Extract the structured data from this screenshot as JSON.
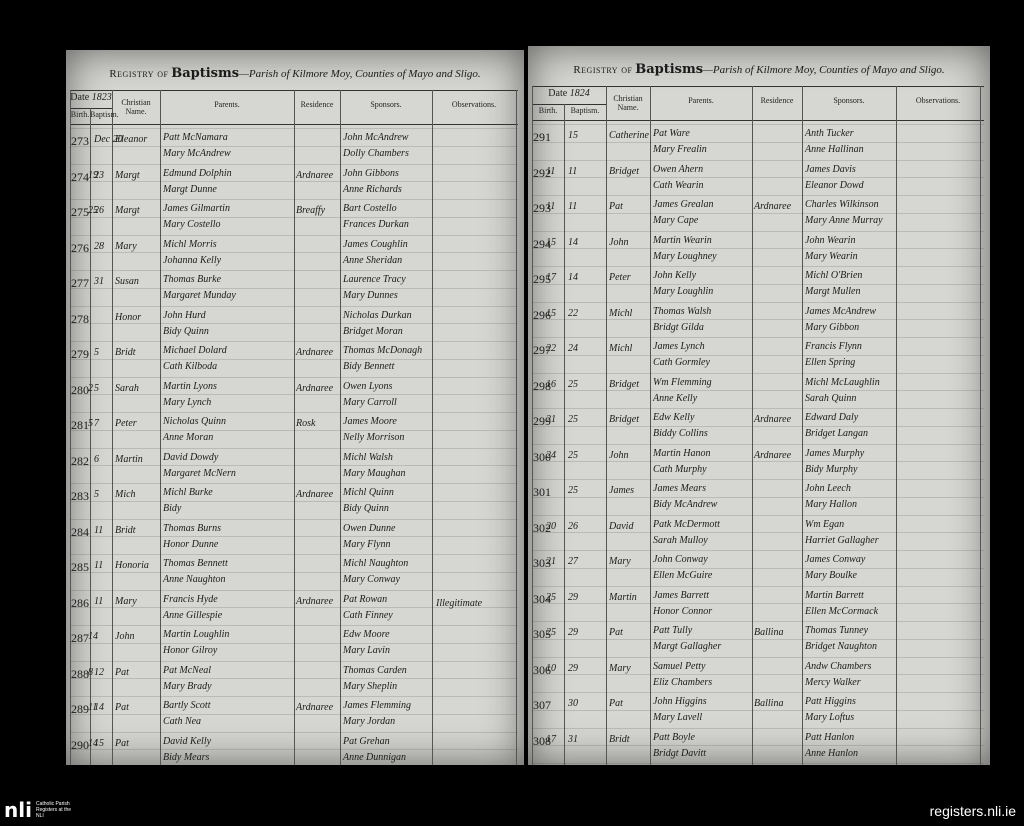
{
  "pages": [
    {
      "header": {
        "registry": "Registry of",
        "title": "Baptisms",
        "parish": "—Parish of Kilmore Moy, Counties of Mayo and Sligo."
      },
      "columns": {
        "date": "Date",
        "year": "1823",
        "birth": "Birth.",
        "baptism": "Baptism.",
        "christian_name": "Christian Name.",
        "parents": "Parents.",
        "residence": "Residence",
        "sponsors": "Sponsors.",
        "observations": "Observations."
      },
      "entries": [
        {
          "number": "273",
          "baptism": "Dec 20",
          "name": "Eleanor",
          "parents": [
            "Patt McNamara",
            "Mary McAndrew"
          ],
          "sponsors": [
            "John McAndrew",
            "Dolly Chambers"
          ]
        },
        {
          "number": "274",
          "birth": "19",
          "baptism": "23",
          "name": "Margt",
          "parents": [
            "Edmund Dolphin",
            "Margt Dunne"
          ],
          "residence": "Ardnaree",
          "sponsors": [
            "John Gibbons",
            "Anne Richards"
          ]
        },
        {
          "number": "275",
          "birth": "25",
          "baptism": "26",
          "name": "Margt",
          "parents": [
            "James Gilmartin",
            "Mary Costello"
          ],
          "residence": "Breaffy",
          "sponsors": [
            "Bart Costello",
            "Frances Durkan"
          ]
        },
        {
          "number": "276",
          "baptism": "28",
          "name": "Mary",
          "parents": [
            "Michl Morris",
            "Johanna Kelly"
          ],
          "sponsors": [
            "James Coughlin",
            "Anne Sheridan"
          ]
        },
        {
          "number": "277",
          "baptism": "31",
          "name": "Susan",
          "parents": [
            "Thomas Burke",
            "Margaret Munday"
          ],
          "sponsors": [
            "Laurence Tracy",
            "Mary Dunnes"
          ]
        },
        {
          "number": "278",
          "name": "Honor",
          "parents": [
            "John Hurd",
            "Bidy Quinn"
          ],
          "sponsors": [
            "Nicholas Durkan",
            "Bridget Moran"
          ]
        },
        {
          "number": "279",
          "baptism": "5",
          "name": "Bridt",
          "parents": [
            "Michael Dolard",
            "Cath Kilboda"
          ],
          "residence": "Ardnaree",
          "sponsors": [
            "Thomas McDonagh",
            "Bidy Bennett"
          ]
        },
        {
          "number": "280",
          "birth": "2",
          "baptism": "5",
          "name": "Sarah",
          "parents": [
            "Martin Lyons",
            "Mary Lynch"
          ],
          "residence": "Ardnaree",
          "sponsors": [
            "Owen Lyons",
            "Mary Carroll"
          ]
        },
        {
          "number": "281",
          "birth": "5",
          "baptism": "7",
          "name": "Peter",
          "parents": [
            "Nicholas Quinn",
            "Anne Moran"
          ],
          "residence": "Rosk",
          "sponsors": [
            "James Moore",
            "Nelly Morrison"
          ]
        },
        {
          "number": "282",
          "baptism": "6",
          "name": "Martin",
          "parents": [
            "David Dowdy",
            "Margaret McNern"
          ],
          "sponsors": [
            "Michl Walsh",
            "Mary Maughan"
          ]
        },
        {
          "number": "283",
          "baptism": "5",
          "name": "Mich",
          "parents": [
            "Michl Burke",
            "Bidy"
          ],
          "residence": "Ardnaree",
          "sponsors": [
            "Michl Quinn",
            "Bidy Quinn"
          ]
        },
        {
          "number": "284",
          "baptism": "11",
          "name": "Bridt",
          "parents": [
            "Thomas Burns",
            "Honor Dunne"
          ],
          "sponsors": [
            "Owen Dunne",
            "Mary Flynn"
          ]
        },
        {
          "number": "285",
          "baptism": "11",
          "name": "Honoria",
          "parents": [
            "Thomas Bennett",
            "Anne Naughton"
          ],
          "sponsors": [
            "Michl Naughton",
            "Mary Conway"
          ]
        },
        {
          "number": "286",
          "baptism": "11",
          "name": "Mary",
          "parents": [
            "Francis Hyde",
            "Anne Gillespie"
          ],
          "residence": "Ardnaree",
          "sponsors": [
            "Pat Rowan",
            "Cath Finney"
          ],
          "observations": "Illegitimate"
        },
        {
          "number": "287",
          "birth": "14",
          "name": "John",
          "parents": [
            "Martin Loughlin",
            "Honor Gilroy"
          ],
          "sponsors": [
            "Edw Moore",
            "Mary Lavin"
          ]
        },
        {
          "number": "288",
          "birth": "8",
          "baptism": "12",
          "name": "Pat",
          "parents": [
            "Pat McNeal",
            "Mary Brady"
          ],
          "sponsors": [
            "Thomas Carden",
            "Mary Sheplin"
          ]
        },
        {
          "number": "289",
          "birth": "11",
          "baptism": "14",
          "name": "Pat",
          "parents": [
            "Bartly Scott",
            "Cath Nea"
          ],
          "residence": "Ardnaree",
          "sponsors": [
            "James Flemming",
            "Mary Jordan"
          ]
        },
        {
          "number": "290",
          "birth": "14",
          "baptism": "15",
          "name": "Pat",
          "parents": [
            "David Kelly",
            "Bidy Mears"
          ],
          "sponsors": [
            "Pat Grehan",
            "Anne Dunnigan"
          ]
        }
      ]
    },
    {
      "header": {
        "registry": "Registry of",
        "title": "Baptisms",
        "parish": "—Parish of Kilmore Moy, Counties of Mayo and Sligo."
      },
      "columns": {
        "date": "Date",
        "year": "1824",
        "birth": "Birth.",
        "baptism": "Baptism.",
        "christian_name": "Christian Name.",
        "parents": "Parents.",
        "residence": "Residence",
        "sponsors": "Sponsors.",
        "observations": "Observations."
      },
      "entries": [
        {
          "number": "291",
          "baptism": "15",
          "name": "Catherine",
          "parents": [
            "Pat Ware",
            "Mary Frealin"
          ],
          "sponsors": [
            "Anth Tucker",
            "Anne Hallinan"
          ]
        },
        {
          "number": "292",
          "birth": "11",
          "baptism": "11",
          "name": "Bridget",
          "parents": [
            "Owen Ahern",
            "Cath Wearin"
          ],
          "sponsors": [
            "James Davis",
            "Eleanor Dowd"
          ]
        },
        {
          "number": "293",
          "birth": "11",
          "baptism": "11",
          "name": "Pat",
          "parents": [
            "James Grealan",
            "Mary Cape"
          ],
          "residence": "Ardnaree",
          "sponsors": [
            "Charles Wilkinson",
            "Mary Anne Murray"
          ]
        },
        {
          "number": "294",
          "birth": "15",
          "baptism": "14",
          "name": "John",
          "parents": [
            "Martin Wearin",
            "Mary Loughney"
          ],
          "sponsors": [
            "John Wearin",
            "Mary Wearin"
          ]
        },
        {
          "number": "295",
          "birth": "17",
          "baptism": "14",
          "name": "Peter",
          "parents": [
            "John Kelly",
            "Mary Loughlin"
          ],
          "sponsors": [
            "Michl O'Brien",
            "Margt Mullen"
          ]
        },
        {
          "number": "296",
          "birth": "15",
          "baptism": "22",
          "name": "Michl",
          "parents": [
            "Thomas Walsh",
            "Bridgt Gilda"
          ],
          "sponsors": [
            "James McAndrew",
            "Mary Gibbon"
          ]
        },
        {
          "number": "297",
          "birth": "22",
          "baptism": "24",
          "name": "Michl",
          "parents": [
            "James Lynch",
            "Cath Gormley"
          ],
          "sponsors": [
            "Francis Flynn",
            "Ellen Spring"
          ]
        },
        {
          "number": "298",
          "birth": "16",
          "baptism": "25",
          "name": "Bridget",
          "parents": [
            "Wm Flemming",
            "Anne Kelly"
          ],
          "sponsors": [
            "Michl McLaughlin",
            "Sarah Quinn"
          ]
        },
        {
          "number": "299",
          "birth": "21",
          "baptism": "25",
          "name": "Bridget",
          "parents": [
            "Edw Kelly",
            "Biddy Collins"
          ],
          "residence": "Ardnaree",
          "sponsors": [
            "Edward Daly",
            "Bridget Langan"
          ]
        },
        {
          "number": "300",
          "birth": "24",
          "baptism": "25",
          "name": "John",
          "parents": [
            "Martin Hanon",
            "Cath Murphy"
          ],
          "residence": "Ardnaree",
          "sponsors": [
            "James Murphy",
            "Bidy Murphy"
          ]
        },
        {
          "number": "301",
          "baptism": "25",
          "name": "James",
          "parents": [
            "James Mears",
            "Bidy McAndrew"
          ],
          "sponsors": [
            "John Leech",
            "Mary Hallon"
          ]
        },
        {
          "number": "302",
          "birth": "20",
          "baptism": "26",
          "name": "David",
          "parents": [
            "Patk McDermott",
            "Sarah Mulloy"
          ],
          "sponsors": [
            "Wm Egan",
            "Harriet Gallagher"
          ]
        },
        {
          "number": "303",
          "birth": "21",
          "baptism": "27",
          "name": "Mary",
          "parents": [
            "John Conway",
            "Ellen McGuire"
          ],
          "sponsors": [
            "James Conway",
            "Mary Boulke"
          ]
        },
        {
          "number": "304",
          "birth": "25",
          "baptism": "29",
          "name": "Martin",
          "parents": [
            "James Barrett",
            "Honor Connor"
          ],
          "sponsors": [
            "Martin Barrett",
            "Ellen McCormack"
          ]
        },
        {
          "number": "305",
          "birth": "25",
          "baptism": "29",
          "name": "Pat",
          "parents": [
            "Patt Tully",
            "Margt Gallagher"
          ],
          "residence": "Ballina",
          "sponsors": [
            "Thomas Tunney",
            "Bridget Naughton"
          ]
        },
        {
          "number": "306",
          "birth": "10",
          "baptism": "29",
          "name": "Mary",
          "parents": [
            "Samuel Petty",
            "Eliz Chambers"
          ],
          "sponsors": [
            "Andw Chambers",
            "Mercy Walker"
          ]
        },
        {
          "number": "307",
          "baptism": "30",
          "name": "Pat",
          "parents": [
            "John Higgins",
            "Mary Lavell"
          ],
          "residence": "Ballina",
          "sponsors": [
            "Patt Higgins",
            "Mary Loftus"
          ]
        },
        {
          "number": "308",
          "birth": "17",
          "baptism": "31",
          "name": "Bridt",
          "parents": [
            "Patt Boyle",
            "Bridgt Davitt"
          ],
          "sponsors": [
            "Patt Hanlon",
            "Anne Hanlon"
          ]
        }
      ]
    }
  ],
  "footer": {
    "logo": "nli",
    "caption": "Catholic Parish Registers at the NLI",
    "site": "registers.nli.ie"
  }
}
